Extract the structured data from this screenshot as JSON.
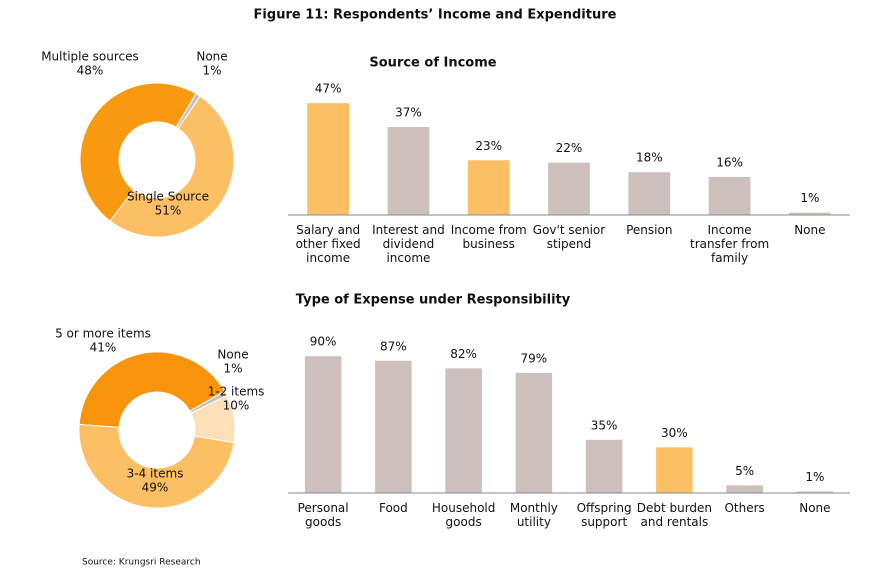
{
  "title": "Figure 11: Respondents’ Income and Expenditure",
  "source": "Source: Krungsri Research",
  "chart_data": [
    {
      "type": "donut",
      "categories": [
        "Multiple sources",
        "None",
        "Single Source"
      ],
      "values": [
        48,
        1,
        51
      ],
      "value_labels": [
        "48%",
        "1%",
        "51%"
      ],
      "colors": [
        "#f79a10",
        "#c8c0bb",
        "#fdbf64"
      ]
    },
    {
      "type": "bar",
      "title": "Source of Income",
      "categories": [
        "Salary and other fixed income",
        "Interest and dividend income",
        "Income from business",
        "Gov't senior stipend",
        "Pension",
        "Income transfer from family",
        "None"
      ],
      "values": [
        47,
        37,
        23,
        22,
        18,
        16,
        1
      ],
      "value_labels": [
        "47%",
        "37%",
        "23%",
        "22%",
        "18%",
        "16%",
        "1%"
      ],
      "colors": [
        "#fdbf64",
        "#cdc0bc",
        "#fdbf64",
        "#cdc0bc",
        "#cdc0bc",
        "#cdc0bc",
        "#cdc0bc"
      ],
      "ylim": [
        0,
        100
      ]
    },
    {
      "type": "donut",
      "categories": [
        "5 or more items",
        "None",
        "1-2 items",
        "3-4 items"
      ],
      "values": [
        41,
        1,
        10,
        49
      ],
      "value_labels": [
        "41%",
        "1%",
        "10%",
        "49%"
      ],
      "colors": [
        "#f7940b",
        "#c8c0bb",
        "#fde0b8",
        "#fdbf64"
      ]
    },
    {
      "type": "bar",
      "title": "Type of Expense under Responsibility",
      "categories": [
        "Personal goods",
        "Food",
        "Household goods",
        "Monthly utility",
        "Offspring support",
        "Debt burden and rentals",
        "Others",
        "None"
      ],
      "values": [
        90,
        87,
        82,
        79,
        35,
        30,
        5,
        1
      ],
      "value_labels": [
        "90%",
        "87%",
        "82%",
        "79%",
        "35%",
        "30%",
        "5%",
        "1%"
      ],
      "colors": [
        "#cdc0bc",
        "#cdc0bc",
        "#cdc0bc",
        "#cdc0bc",
        "#cdc0bc",
        "#fdbf64",
        "#cdc0bc",
        "#cdc0bc"
      ],
      "ylim": [
        0,
        100
      ]
    }
  ]
}
